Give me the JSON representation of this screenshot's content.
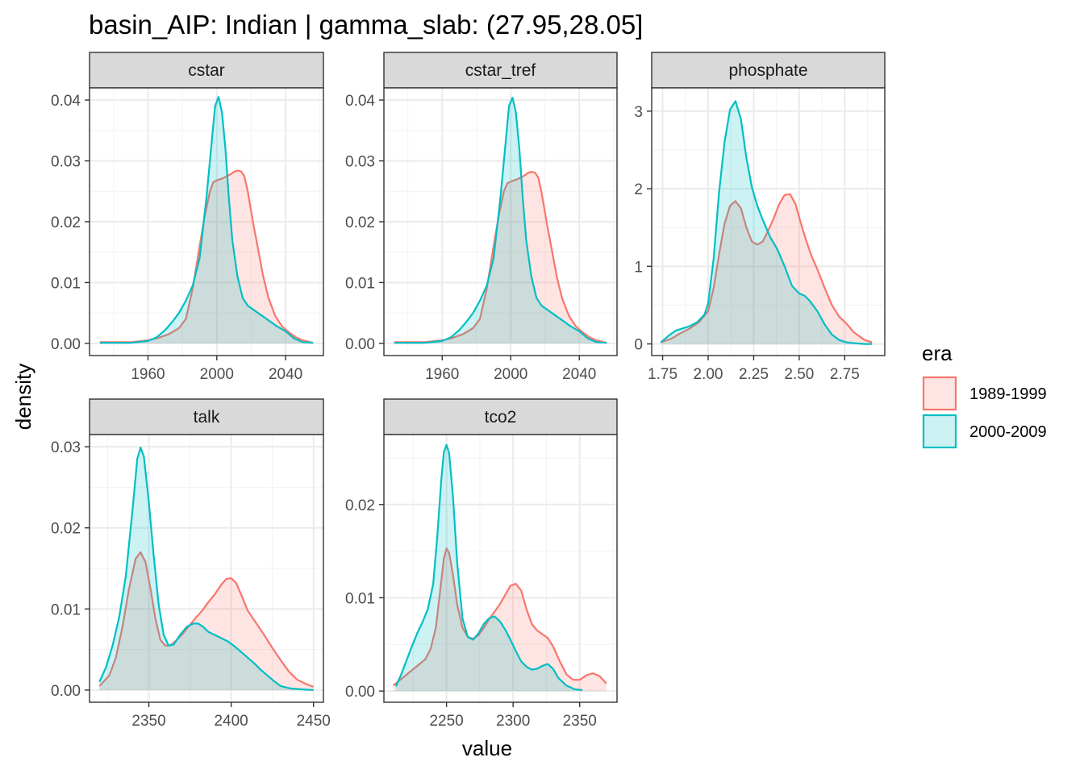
{
  "chart_data": {
    "type": "area",
    "title": "basin_AIP: Indian | gamma_slab: (27.95,28.05]",
    "xlabel": "value",
    "ylabel": "density",
    "grid": true,
    "legend": {
      "title": "era",
      "position": "right",
      "entries": [
        {
          "label": "1989-1999",
          "color": "#F8766D"
        },
        {
          "label": "2000-2009",
          "color": "#00BFC4"
        }
      ]
    },
    "panels": [
      {
        "name": "cstar",
        "xlim": [
          1926,
          2062
        ],
        "ylim": [
          -0.002,
          0.042
        ],
        "xticks": [
          1960,
          2000,
          2040
        ],
        "xtick_labels": [
          "1960",
          "2000",
          "2040"
        ],
        "yticks": [
          0,
          0.01,
          0.02,
          0.03,
          0.04
        ],
        "ytick_labels": [
          "0.00",
          "0.01",
          "0.02",
          "0.03",
          "0.04"
        ],
        "series": [
          {
            "name": "1989-1999",
            "x": [
              1932,
              1950,
              1960,
              1966,
              1972,
              1978,
              1982,
              1986,
              1990,
              1993,
              1996,
              1998,
              2000,
              2002,
              2004,
              2006,
              2008,
              2010,
              2012,
              2014,
              2016,
              2018,
              2021,
              2024,
              2027,
              2030,
              2034,
              2038,
              2042,
              2046,
              2050,
              2056
            ],
            "y": [
              0.0002,
              0.0002,
              0.0005,
              0.0009,
              0.0015,
              0.0025,
              0.004,
              0.009,
              0.016,
              0.021,
              0.025,
              0.0265,
              0.0268,
              0.027,
              0.0272,
              0.0275,
              0.0278,
              0.0282,
              0.0284,
              0.0283,
              0.0275,
              0.025,
              0.02,
              0.0155,
              0.011,
              0.0075,
              0.0045,
              0.0028,
              0.0018,
              0.001,
              0.0005,
              0.0001
            ]
          },
          {
            "name": "2000-2009",
            "x": [
              1932,
              1950,
              1960,
              1965,
              1970,
              1974,
              1978,
              1982,
              1986,
              1990,
              1994,
              1997,
              1999,
              2001,
              2003,
              2005,
              2007,
              2009,
              2012,
              2015,
              2018,
              2021,
              2025,
              2030,
              2035,
              2040,
              2045,
              2050,
              2056
            ],
            "y": [
              0.0001,
              0.0001,
              0.0004,
              0.001,
              0.0022,
              0.0035,
              0.005,
              0.007,
              0.0095,
              0.014,
              0.024,
              0.033,
              0.039,
              0.0405,
              0.038,
              0.032,
              0.024,
              0.017,
              0.011,
              0.0075,
              0.0062,
              0.0056,
              0.0048,
              0.0038,
              0.0028,
              0.002,
              0.0008,
              0.0002,
              0.0001
            ]
          }
        ]
      },
      {
        "name": "cstar_tref",
        "xlim": [
          1926,
          2062
        ],
        "ylim": [
          -0.002,
          0.042
        ],
        "xticks": [
          1960,
          2000,
          2040
        ],
        "xtick_labels": [
          "1960",
          "2000",
          "2040"
        ],
        "yticks": [
          0,
          0.01,
          0.02,
          0.03,
          0.04
        ],
        "ytick_labels": [
          "0.00",
          "0.01",
          "0.02",
          "0.03",
          "0.04"
        ],
        "series": [
          {
            "name": "1989-1999",
            "x": [
              1932,
              1950,
              1960,
              1966,
              1972,
              1978,
              1982,
              1986,
              1990,
              1993,
              1996,
              1998,
              2000,
              2002,
              2004,
              2006,
              2008,
              2010,
              2012,
              2014,
              2016,
              2018,
              2021,
              2024,
              2027,
              2030,
              2034,
              2038,
              2042,
              2046,
              2050,
              2056
            ],
            "y": [
              0.0002,
              0.0002,
              0.0005,
              0.0009,
              0.0015,
              0.0025,
              0.004,
              0.009,
              0.016,
              0.021,
              0.025,
              0.0263,
              0.0266,
              0.0268,
              0.027,
              0.0273,
              0.0276,
              0.028,
              0.0282,
              0.0281,
              0.0273,
              0.0248,
              0.0198,
              0.0153,
              0.0108,
              0.0074,
              0.0045,
              0.0028,
              0.0018,
              0.001,
              0.0005,
              0.0001
            ]
          },
          {
            "name": "2000-2009",
            "x": [
              1932,
              1950,
              1960,
              1965,
              1970,
              1974,
              1978,
              1982,
              1986,
              1990,
              1994,
              1997,
              1999,
              2001,
              2003,
              2005,
              2007,
              2009,
              2012,
              2015,
              2018,
              2021,
              2025,
              2030,
              2035,
              2040,
              2045,
              2050,
              2056
            ],
            "y": [
              0.0001,
              0.0001,
              0.0004,
              0.001,
              0.0022,
              0.0035,
              0.005,
              0.007,
              0.0095,
              0.014,
              0.024,
              0.033,
              0.039,
              0.0404,
              0.038,
              0.032,
              0.024,
              0.017,
              0.011,
              0.0075,
              0.0062,
              0.0056,
              0.0048,
              0.0038,
              0.0028,
              0.002,
              0.0008,
              0.0002,
              0.0001
            ]
          }
        ]
      },
      {
        "name": "phosphate",
        "xlim": [
          1.69,
          2.97
        ],
        "ylim": [
          -0.15,
          3.3
        ],
        "xticks": [
          1.75,
          2.0,
          2.25,
          2.5,
          2.75
        ],
        "xtick_labels": [
          "1.75",
          "2.00",
          "2.25",
          "2.50",
          "2.75"
        ],
        "yticks": [
          0,
          1,
          2,
          3
        ],
        "ytick_labels": [
          "0",
          "1",
          "2",
          "3"
        ],
        "series": [
          {
            "name": "1989-1999",
            "x": [
              1.74,
              1.8,
              1.85,
              1.9,
              1.95,
              2.0,
              2.03,
              2.06,
              2.09,
              2.12,
              2.15,
              2.18,
              2.21,
              2.24,
              2.27,
              2.3,
              2.33,
              2.36,
              2.39,
              2.42,
              2.45,
              2.48,
              2.51,
              2.54,
              2.57,
              2.6,
              2.64,
              2.68,
              2.72,
              2.76,
              2.8,
              2.86,
              2.9
            ],
            "y": [
              0.02,
              0.07,
              0.14,
              0.2,
              0.28,
              0.42,
              0.72,
              1.15,
              1.55,
              1.78,
              1.84,
              1.75,
              1.5,
              1.32,
              1.28,
              1.32,
              1.46,
              1.62,
              1.8,
              1.92,
              1.93,
              1.8,
              1.55,
              1.32,
              1.12,
              0.96,
              0.72,
              0.5,
              0.35,
              0.26,
              0.15,
              0.05,
              0.02
            ]
          },
          {
            "name": "2000-2009",
            "x": [
              1.74,
              1.78,
              1.82,
              1.86,
              1.9,
              1.94,
              1.98,
              2.0,
              2.03,
              2.06,
              2.09,
              2.12,
              2.15,
              2.18,
              2.21,
              2.24,
              2.27,
              2.3,
              2.34,
              2.38,
              2.42,
              2.46,
              2.5,
              2.53,
              2.56,
              2.6,
              2.64,
              2.68,
              2.72,
              2.76,
              2.8,
              2.86,
              2.9
            ],
            "y": [
              0.02,
              0.1,
              0.17,
              0.2,
              0.23,
              0.28,
              0.38,
              0.52,
              1.1,
              1.95,
              2.6,
              3.02,
              3.13,
              2.9,
              2.4,
              2.02,
              1.78,
              1.6,
              1.38,
              1.22,
              1.0,
              0.75,
              0.65,
              0.62,
              0.55,
              0.42,
              0.25,
              0.12,
              0.05,
              0.02,
              0.01,
              0.0,
              0.0
            ]
          }
        ]
      },
      {
        "name": "talk",
        "xlim": [
          2314,
          2456
        ],
        "ylim": [
          -0.0015,
          0.0315
        ],
        "xticks": [
          2350,
          2400,
          2450
        ],
        "xtick_labels": [
          "2350",
          "2400",
          "2450"
        ],
        "yticks": [
          0,
          0.01,
          0.02,
          0.03
        ],
        "ytick_labels": [
          "0.00",
          "0.01",
          "0.02",
          "0.03"
        ],
        "series": [
          {
            "name": "1989-1999",
            "x": [
              2320,
              2326,
              2330,
              2334,
              2338,
              2342,
              2345,
              2348,
              2351,
              2354,
              2357,
              2360,
              2363,
              2366,
              2370,
              2374,
              2378,
              2382,
              2386,
              2390,
              2394,
              2397,
              2400,
              2403,
              2406,
              2410,
              2415,
              2420,
              2425,
              2430,
              2435,
              2440,
              2445,
              2450
            ],
            "y": [
              0.0005,
              0.0018,
              0.004,
              0.0078,
              0.0125,
              0.0162,
              0.017,
              0.0158,
              0.0125,
              0.0088,
              0.0062,
              0.0055,
              0.0055,
              0.006,
              0.0068,
              0.0078,
              0.0088,
              0.0097,
              0.0108,
              0.0118,
              0.013,
              0.0137,
              0.0138,
              0.0132,
              0.0118,
              0.0098,
              0.0083,
              0.0068,
              0.0052,
              0.0037,
              0.0023,
              0.0013,
              0.0008,
              0.0004
            ]
          },
          {
            "name": "2000-2009",
            "x": [
              2320,
              2324,
              2328,
              2332,
              2336,
              2340,
              2343,
              2345,
              2347,
              2350,
              2353,
              2356,
              2359,
              2362,
              2365,
              2369,
              2373,
              2377,
              2380,
              2383,
              2386,
              2390,
              2394,
              2398,
              2402,
              2406,
              2410,
              2414,
              2418,
              2422,
              2426,
              2430,
              2436,
              2442,
              2450
            ],
            "y": [
              0.001,
              0.0028,
              0.0055,
              0.009,
              0.014,
              0.022,
              0.0285,
              0.0299,
              0.0288,
              0.0232,
              0.0165,
              0.0105,
              0.0068,
              0.0055,
              0.0056,
              0.0068,
              0.0078,
              0.0082,
              0.0082,
              0.0078,
              0.0072,
              0.0068,
              0.0064,
              0.006,
              0.0054,
              0.0047,
              0.004,
              0.0033,
              0.0025,
              0.0018,
              0.0011,
              0.0005,
              0.0002,
              0.0001,
              0.0
            ]
          }
        ]
      },
      {
        "name": "tco2",
        "xlim": [
          2203,
          2378
        ],
        "ylim": [
          -0.0012,
          0.0275
        ],
        "xticks": [
          2200,
          2250,
          2300,
          2350
        ],
        "xtick_labels": [
          "2200",
          "2250",
          "2300",
          "2350"
        ],
        "yticks": [
          0,
          0.01,
          0.02
        ],
        "ytick_labels": [
          "0.00",
          "0.01",
          "0.02"
        ],
        "series": [
          {
            "name": "1989-1999",
            "x": [
              2210,
              2216,
              2222,
              2228,
              2234,
              2238,
              2242,
              2245,
              2248,
              2250,
              2252,
              2255,
              2258,
              2262,
              2266,
              2270,
              2274,
              2278,
              2282,
              2286,
              2290,
              2294,
              2298,
              2302,
              2306,
              2310,
              2314,
              2318,
              2322,
              2326,
              2330,
              2335,
              2340,
              2345,
              2350,
              2355,
              2360,
              2365,
              2370
            ],
            "y": [
              0.0006,
              0.0013,
              0.002,
              0.0027,
              0.0034,
              0.0045,
              0.0068,
              0.0105,
              0.0142,
              0.0153,
              0.0148,
              0.0123,
              0.0093,
              0.0068,
              0.0058,
              0.0056,
              0.006,
              0.0068,
              0.0077,
              0.0085,
              0.0093,
              0.0103,
              0.0113,
              0.0115,
              0.0108,
              0.0088,
              0.0072,
              0.0065,
              0.0061,
              0.0057,
              0.0048,
              0.0032,
              0.0018,
              0.0012,
              0.0012,
              0.0017,
              0.0019,
              0.0016,
              0.0008
            ]
          },
          {
            "name": "2000-2009",
            "x": [
              2212,
              2216,
              2220,
              2224,
              2228,
              2232,
              2236,
              2240,
              2243,
              2246,
              2248,
              2250,
              2252,
              2255,
              2258,
              2262,
              2266,
              2270,
              2274,
              2278,
              2282,
              2286,
              2290,
              2294,
              2298,
              2302,
              2306,
              2310,
              2314,
              2318,
              2322,
              2326,
              2330,
              2334,
              2340,
              2346,
              2352
            ],
            "y": [
              0.0005,
              0.0018,
              0.0033,
              0.0048,
              0.0062,
              0.0074,
              0.0088,
              0.0115,
              0.0165,
              0.0225,
              0.0256,
              0.0264,
              0.0255,
              0.0205,
              0.0138,
              0.0078,
              0.0058,
              0.0055,
              0.0062,
              0.0072,
              0.0078,
              0.008,
              0.0075,
              0.0066,
              0.0055,
              0.0043,
              0.0032,
              0.0026,
              0.0023,
              0.0024,
              0.0027,
              0.0029,
              0.0024,
              0.0014,
              0.0006,
              0.0002,
              0.0001
            ]
          }
        ]
      }
    ]
  }
}
